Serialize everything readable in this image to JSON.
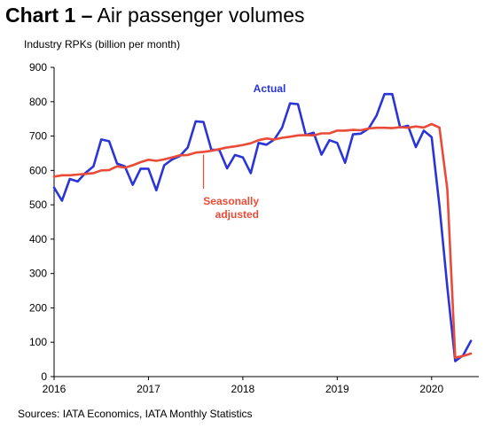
{
  "header": {
    "title_bold": "Chart 1 –",
    "title_rest": " Air passenger volumes",
    "unit_label": "Industry RPKs (billion per month)"
  },
  "footer": {
    "source": "Sources: IATA Economics, IATA Monthly Statistics"
  },
  "chart_data": {
    "type": "line",
    "ylabel": "Industry RPKs (billion per month)",
    "ylim": [
      0,
      900
    ],
    "yticks": [
      "0",
      "100",
      "200",
      "300",
      "400",
      "500",
      "600",
      "700",
      "800",
      "900"
    ],
    "xlim": [
      "2016-01",
      "2020-06"
    ],
    "xticks": [
      "2016",
      "2017",
      "2018",
      "2019",
      "2020"
    ],
    "grid": false,
    "x": [
      "2016-01",
      "2016-02",
      "2016-03",
      "2016-04",
      "2016-05",
      "2016-06",
      "2016-07",
      "2016-08",
      "2016-09",
      "2016-10",
      "2016-11",
      "2016-12",
      "2017-01",
      "2017-02",
      "2017-03",
      "2017-04",
      "2017-05",
      "2017-06",
      "2017-07",
      "2017-08",
      "2017-09",
      "2017-10",
      "2017-11",
      "2017-12",
      "2018-01",
      "2018-02",
      "2018-03",
      "2018-04",
      "2018-05",
      "2018-06",
      "2018-07",
      "2018-08",
      "2018-09",
      "2018-10",
      "2018-11",
      "2018-12",
      "2019-01",
      "2019-02",
      "2019-03",
      "2019-04",
      "2019-05",
      "2019-06",
      "2019-07",
      "2019-08",
      "2019-09",
      "2019-10",
      "2019-11",
      "2019-12",
      "2020-01",
      "2020-02",
      "2020-03",
      "2020-04",
      "2020-05",
      "2020-06"
    ],
    "series": [
      {
        "name": "Actual",
        "color": "#2b35d6",
        "values": [
          550,
          512,
          575,
          568,
          593,
          612,
          690,
          685,
          620,
          612,
          558,
          605,
          605,
          542,
          615,
          632,
          642,
          667,
          743,
          741,
          660,
          660,
          606,
          645,
          638,
          592,
          680,
          675,
          690,
          725,
          795,
          793,
          703,
          710,
          646,
          688,
          680,
          622,
          705,
          707,
          722,
          760,
          822,
          822,
          725,
          730,
          668,
          716,
          697,
          497,
          260,
          45,
          62,
          104
        ]
      },
      {
        "name": "Seasonally adjusted",
        "color": "#ea4b39",
        "values": [
          582,
          586,
          586,
          588,
          590,
          592,
          600,
          601,
          612,
          608,
          615,
          624,
          631,
          628,
          632,
          638,
          644,
          645,
          652,
          654,
          657,
          662,
          667,
          670,
          674,
          679,
          688,
          693,
          690,
          695,
          698,
          702,
          703,
          702,
          708,
          708,
          716,
          716,
          718,
          717,
          722,
          724,
          724,
          723,
          726,
          724,
          728,
          725,
          735,
          725,
          545,
          55,
          60,
          67
        ]
      }
    ]
  }
}
